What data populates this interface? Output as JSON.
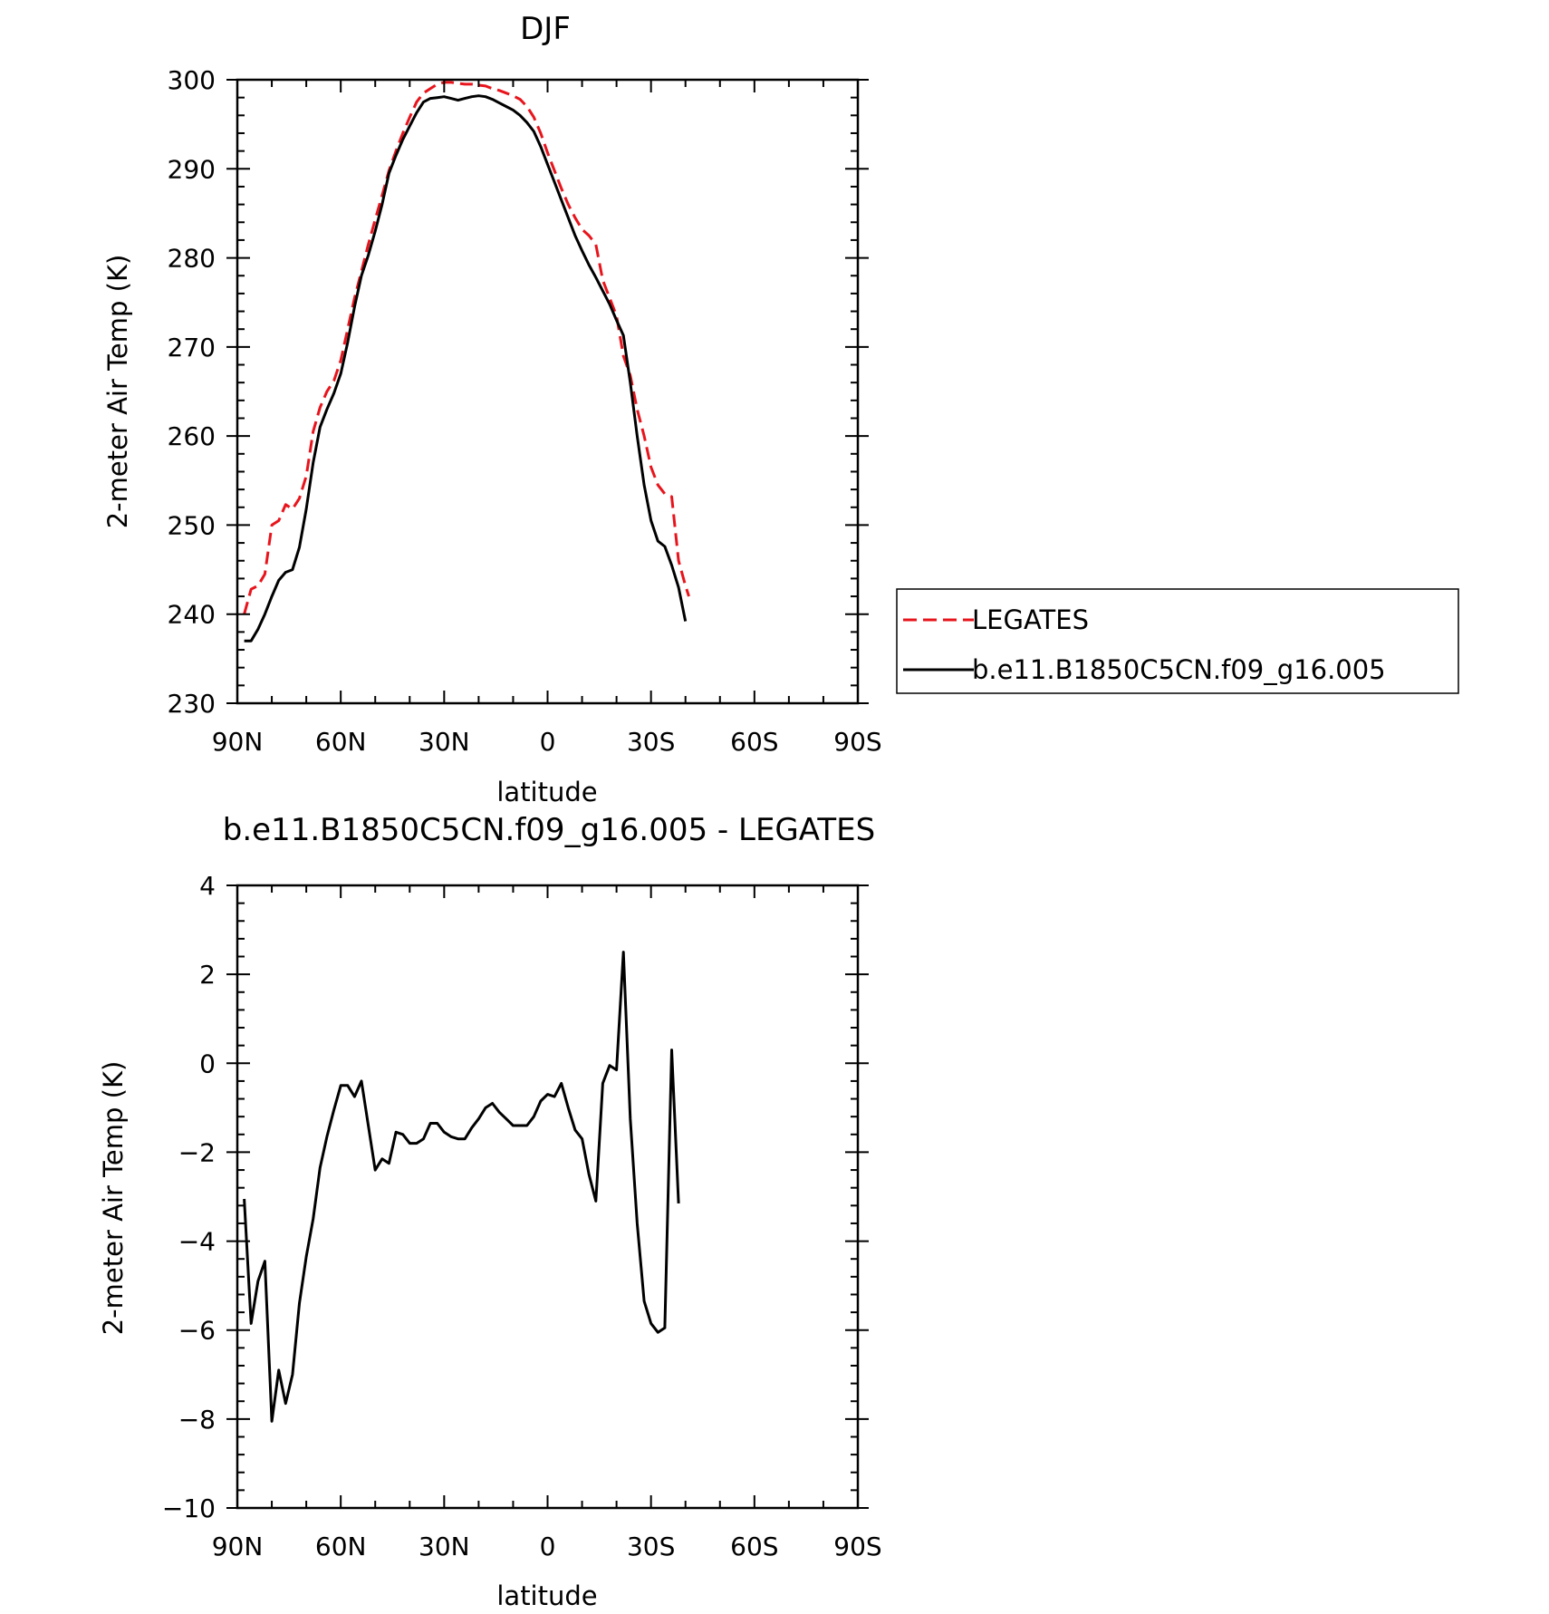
{
  "chart_data": [
    {
      "type": "line",
      "title": "DJF",
      "xlabel": "latitude",
      "ylabel": "2-meter Air Temp (K)",
      "xlim": [
        90,
        -90
      ],
      "ylim": [
        230,
        300
      ],
      "x_ticks": [
        90,
        60,
        30,
        0,
        -30,
        -60,
        -90
      ],
      "x_tick_labels": [
        "90N",
        "60N",
        "30N",
        "0",
        "30S",
        "60S",
        "90S"
      ],
      "y_ticks": [
        230,
        240,
        250,
        260,
        270,
        280,
        290,
        300
      ],
      "y_tick_labels": [
        "230",
        "240",
        "250",
        "260",
        "270",
        "280",
        "290",
        "300"
      ],
      "grid": false,
      "legend_position": "right",
      "series": [
        {
          "name": "LEGATES",
          "color": "#e8141c",
          "dash": "dashed",
          "points": [
            [
              88,
              240
            ],
            [
              86,
              242.8
            ],
            [
              84,
              243.2
            ],
            [
              82,
              244.5
            ],
            [
              80,
              250
            ],
            [
              78,
              250.5
            ],
            [
              76,
              252.3
            ],
            [
              74,
              251.8
            ],
            [
              72,
              253
            ],
            [
              70,
              255.5
            ],
            [
              68,
              260.5
            ],
            [
              66,
              263.2
            ],
            [
              64,
              265
            ],
            [
              62,
              266.2
            ],
            [
              60,
              268.5
            ],
            [
              58,
              272
            ],
            [
              56,
              275.5
            ],
            [
              54,
              278.5
            ],
            [
              52,
              281.5
            ],
            [
              50,
              284.3
            ],
            [
              48,
              287
            ],
            [
              46,
              289.8
            ],
            [
              44,
              292
            ],
            [
              42,
              294
            ],
            [
              40,
              295.8
            ],
            [
              38,
              297.5
            ],
            [
              36,
              298.5
            ],
            [
              34,
              299
            ],
            [
              32,
              299.5
            ],
            [
              30,
              299.7
            ],
            [
              28,
              299.7
            ],
            [
              26,
              299.6
            ],
            [
              24,
              299.5
            ],
            [
              22,
              299.5
            ],
            [
              20,
              299.4
            ],
            [
              18,
              299.3
            ],
            [
              16,
              299
            ],
            [
              14,
              298.8
            ],
            [
              12,
              298.5
            ],
            [
              10,
              298.2
            ],
            [
              8,
              297.8
            ],
            [
              6,
              297
            ],
            [
              4,
              295.8
            ],
            [
              2,
              294
            ],
            [
              0,
              291.8
            ],
            [
              -2,
              289.8
            ],
            [
              -4,
              287.8
            ],
            [
              -6,
              286
            ],
            [
              -8,
              284.5
            ],
            [
              -10,
              283.2
            ],
            [
              -12,
              282.5
            ],
            [
              -14,
              281.5
            ],
            [
              -16,
              277.5
            ],
            [
              -18,
              275.5
            ],
            [
              -20,
              273.5
            ],
            [
              -22,
              269
            ],
            [
              -24,
              266.8
            ],
            [
              -26,
              263
            ],
            [
              -28,
              260
            ],
            [
              -30,
              256.5
            ],
            [
              -32,
              254.5
            ],
            [
              -34,
              253.5
            ],
            [
              -36,
              253.2
            ],
            [
              -38,
              246
            ],
            [
              -40,
              243.2
            ],
            [
              -41,
              242
            ]
          ]
        },
        {
          "name": "b.e11.B1850C5CN.f09_g16.005",
          "color": "#000000",
          "dash": "solid",
          "points": [
            [
              88,
              237
            ],
            [
              86,
              237
            ],
            [
              84,
              238.3
            ],
            [
              82,
              240
            ],
            [
              80,
              242
            ],
            [
              78,
              243.8
            ],
            [
              76,
              244.7
            ],
            [
              74,
              245
            ],
            [
              72,
              247.5
            ],
            [
              70,
              251.8
            ],
            [
              68,
              257
            ],
            [
              66,
              261
            ],
            [
              64,
              263
            ],
            [
              62,
              264.8
            ],
            [
              60,
              267
            ],
            [
              58,
              270.5
            ],
            [
              56,
              274.5
            ],
            [
              54,
              278
            ],
            [
              52,
              280.3
            ],
            [
              50,
              283
            ],
            [
              48,
              286
            ],
            [
              46,
              289.5
            ],
            [
              44,
              291.5
            ],
            [
              42,
              293.3
            ],
            [
              40,
              294.8
            ],
            [
              38,
              296.3
            ],
            [
              36,
              297.5
            ],
            [
              34,
              297.9
            ],
            [
              32,
              298
            ],
            [
              30,
              298.1
            ],
            [
              28,
              297.9
            ],
            [
              26,
              297.7
            ],
            [
              24,
              297.9
            ],
            [
              22,
              298.1
            ],
            [
              20,
              298.2
            ],
            [
              18,
              298.1
            ],
            [
              16,
              297.8
            ],
            [
              14,
              297.4
            ],
            [
              12,
              297
            ],
            [
              10,
              296.6
            ],
            [
              8,
              296
            ],
            [
              6,
              295.2
            ],
            [
              4,
              294.2
            ],
            [
              2,
              292.5
            ],
            [
              0,
              290.5
            ],
            [
              -2,
              288.5
            ],
            [
              -4,
              286.5
            ],
            [
              -6,
              284.5
            ],
            [
              -8,
              282.5
            ],
            [
              -10,
              280.8
            ],
            [
              -12,
              279.2
            ],
            [
              -14,
              277.8
            ],
            [
              -16,
              276.3
            ],
            [
              -18,
              274.8
            ],
            [
              -20,
              273
            ],
            [
              -22,
              271.3
            ],
            [
              -24,
              266
            ],
            [
              -26,
              260
            ],
            [
              -28,
              254.5
            ],
            [
              -30,
              250.5
            ],
            [
              -32,
              248.2
            ],
            [
              -34,
              247.6
            ],
            [
              -36,
              245.5
            ],
            [
              -38,
              243
            ],
            [
              -40,
              239.2
            ]
          ]
        }
      ]
    },
    {
      "type": "line",
      "title": "b.e11.B1850C5CN.f09_g16.005 - LEGATES",
      "xlabel": "latitude",
      "ylabel": "2-meter Air Temp (K)",
      "xlim": [
        90,
        -90
      ],
      "ylim": [
        -10,
        4
      ],
      "x_ticks": [
        90,
        60,
        30,
        0,
        -30,
        -60,
        -90
      ],
      "x_tick_labels": [
        "90N",
        "60N",
        "30N",
        "0",
        "30S",
        "60S",
        "90S"
      ],
      "y_ticks": [
        -10,
        -8,
        -6,
        -4,
        -2,
        0,
        2,
        4
      ],
      "y_tick_labels": [
        "−10",
        "−8",
        "−6",
        "−4",
        "−2",
        "0",
        "2",
        "4"
      ],
      "grid": false,
      "series": [
        {
          "color": "#000000",
          "dash": "solid",
          "points": [
            [
              88,
              -3.05
            ],
            [
              86,
              -5.85
            ],
            [
              84,
              -4.9
            ],
            [
              82,
              -4.45
            ],
            [
              80,
              -8.05
            ],
            [
              78,
              -6.9
            ],
            [
              76,
              -7.65
            ],
            [
              74,
              -7
            ],
            [
              72,
              -5.4
            ],
            [
              70,
              -4.35
            ],
            [
              68,
              -3.5
            ],
            [
              66,
              -2.35
            ],
            [
              64,
              -1.65
            ],
            [
              62,
              -1.05
            ],
            [
              60,
              -0.5
            ],
            [
              58,
              -0.5
            ],
            [
              56,
              -0.75
            ],
            [
              54,
              -0.4
            ],
            [
              52,
              -1.4
            ],
            [
              50,
              -2.4
            ],
            [
              48,
              -2.15
            ],
            [
              46,
              -2.25
            ],
            [
              44,
              -1.55
            ],
            [
              42,
              -1.6
            ],
            [
              40,
              -1.8
            ],
            [
              38,
              -1.8
            ],
            [
              36,
              -1.7
            ],
            [
              34,
              -1.35
            ],
            [
              32,
              -1.35
            ],
            [
              30,
              -1.55
            ],
            [
              28,
              -1.65
            ],
            [
              26,
              -1.7
            ],
            [
              24,
              -1.7
            ],
            [
              22,
              -1.45
            ],
            [
              20,
              -1.25
            ],
            [
              18,
              -1.0
            ],
            [
              16,
              -0.9
            ],
            [
              14,
              -1.1
            ],
            [
              12,
              -1.25
            ],
            [
              10,
              -1.4
            ],
            [
              8,
              -1.4
            ],
            [
              6,
              -1.4
            ],
            [
              4,
              -1.2
            ],
            [
              2,
              -0.85
            ],
            [
              0,
              -0.7
            ],
            [
              -2,
              -0.75
            ],
            [
              -4,
              -0.45
            ],
            [
              -6,
              -1.0
            ],
            [
              -8,
              -1.5
            ],
            [
              -10,
              -1.7
            ],
            [
              -12,
              -2.5
            ],
            [
              -14,
              -3.1
            ],
            [
              -16,
              -0.45
            ],
            [
              -18,
              -0.05
            ],
            [
              -20,
              -0.15
            ],
            [
              -22,
              2.5
            ],
            [
              -24,
              -1.25
            ],
            [
              -26,
              -3.6
            ],
            [
              -28,
              -5.35
            ],
            [
              -30,
              -5.85
            ],
            [
              -32,
              -6.05
            ],
            [
              -34,
              -5.95
            ],
            [
              -36,
              0.3
            ],
            [
              -38,
              -3.15
            ]
          ]
        }
      ]
    }
  ]
}
